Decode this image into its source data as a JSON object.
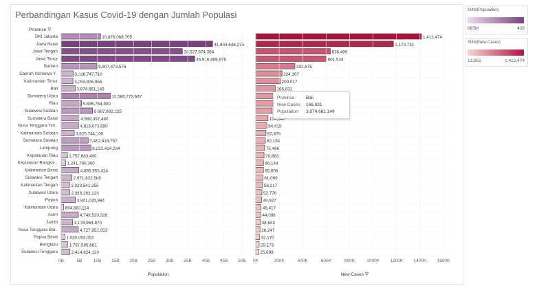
{
  "title": "Perbandingan Kasus Covid-19 dengan Jumlah Populasi",
  "province_header": "Province",
  "filter_icon": "filter-icon",
  "legend_population": {
    "title": "SUM(Population)",
    "min": "685M",
    "max": "428",
    "color_from": "#ecdcec",
    "color_to": "#7b3f80"
  },
  "legend_cases": {
    "title": "SUM(New Cases)",
    "min": "13,951",
    "max": "1,412,474",
    "color_from": "#fbd6d0",
    "color_to": "#b0123e"
  },
  "tooltip": {
    "province_label": "Province:",
    "province_value": "Bali",
    "cases_label": "New Cases:",
    "cases_value": "166,831",
    "population_label": "Population:",
    "population_value": "3,874,661,149"
  },
  "chart_data": [
    {
      "type": "bar",
      "orientation": "horizontal",
      "xlabel": "Population",
      "xlim": [
        0,
        50000000000
      ],
      "ticks": [
        "0B",
        "5B",
        "10B",
        "15B",
        "20B",
        "25B",
        "30B",
        "35B",
        "40B",
        "45B",
        "50B"
      ],
      "categories": [
        "DKI Jakarta",
        "Jawa Barat",
        "Jawa Tengah",
        "Jawa Timur",
        "Banten",
        "Daerah Istimewa Y..",
        "Kalimantan Timur",
        "Bali",
        "Sumatera Utara",
        "Riau",
        "Sulawesi Selatan",
        "Sumatera Barat",
        "Nusa Tenggara Tim..",
        "Kalimantan Selatan",
        "Sumatera Selatan",
        "Lampung",
        "Kepulauan Riau",
        "Kepulauan Bangka ..",
        "Kalimantan Barat",
        "Sulawesi Tengah",
        "Kalimantan Tengah",
        "Sulawesi Utara",
        "Papua",
        "Kalimantan Utara",
        "Aceh",
        "Jambi",
        "Nusa Tenggara Bar..",
        "Papua Barat",
        "Bengkulu",
        "Sulawesi Tenggara"
      ],
      "values": [
        10876068705,
        41864648275,
        33527674384,
        36916868976,
        9907473576,
        3318747710,
        3253806956,
        3874661149,
        13580773667,
        5635764800,
        8687892235,
        4989397480,
        4816075690,
        3620744100,
        7482418757,
        8222414264,
        1757683400,
        1241790300,
        4885955414,
        2971832568,
        2323541255,
        2388263126,
        3941035984,
        694883114,
        4748520328,
        3178964870,
        4727952053,
        1030053002,
        1797585661,
        2424624120
      ],
      "labels": [
        "10,876,068,705",
        "41,864,648,275",
        "33,527,674,384",
        "36,916,868,976",
        "9,907,473,576",
        "3,318,747,710",
        "3,253,806,956",
        "3,874,661,149",
        "13,580,773,667",
        "5,635,764,800",
        "8,687,892,235",
        "4,989,397,480",
        "4,816,075,690",
        "3,620,744,100",
        "7,482,418,757",
        "8,222,414,264",
        "1,757,683,400",
        "1,241,790,300",
        "4,885,955,414",
        "2,971,832,568",
        "2,323,541,255",
        "2,388,263,126",
        "3,941,035,984",
        "694,883,114",
        "4,748,520,328",
        "3,178,964,870",
        "4,727,952,053",
        "1,030,053,002",
        "1,797,585,661",
        "2,424,624,120"
      ]
    },
    {
      "type": "bar",
      "orientation": "horizontal",
      "xlabel": "New Cases",
      "xlim": [
        0,
        1600000
      ],
      "ticks": [
        "0K",
        "200K",
        "400K",
        "600K",
        "800K",
        "1000K",
        "1200K",
        "1400K",
        "1600K"
      ],
      "values": [
        1412474,
        1173731,
        636400,
        601534,
        333875,
        224307,
        209017,
        166831,
        160000,
        150000,
        140000,
        104640,
        94415,
        87476,
        82198,
        75486,
        70883,
        66144,
        65606,
        61099,
        58217,
        52770,
        49927,
        45417,
        44098,
        38643,
        36247,
        32170,
        29173,
        25699
      ],
      "labels": [
        "1,412,474",
        "1,173,731",
        "636,400",
        "601,534",
        "333,875",
        "224,307",
        "209,017",
        "166,831",
        "",
        "",
        "",
        "104,640",
        "94,415",
        "87,476",
        "82,198",
        "75,486",
        "70,883",
        "66,144",
        "65,606",
        "61,099",
        "58,217",
        "52,770",
        "49,927",
        "45,417",
        "44,098",
        "38,643",
        "36,247",
        "32,170",
        "29,173",
        "25,699"
      ]
    }
  ]
}
